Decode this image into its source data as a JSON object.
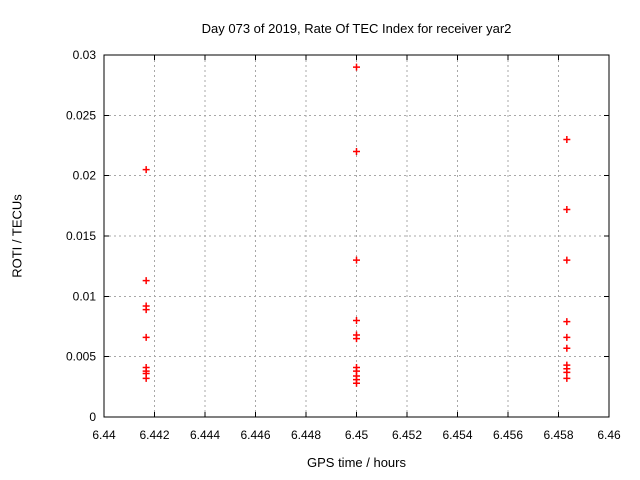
{
  "chart_data": {
    "type": "scatter",
    "title": "Day 073 of 2019, Rate Of TEC Index for receiver yar2",
    "xlabel": "GPS time / hours",
    "ylabel": "ROTI / TECUs",
    "xlim": [
      6.44,
      6.46
    ],
    "ylim": [
      0,
      0.03
    ],
    "x_ticks": [
      6.44,
      6.442,
      6.444,
      6.446,
      6.448,
      6.45,
      6.452,
      6.454,
      6.456,
      6.458,
      6.46
    ],
    "x_tick_labels": [
      "6.44",
      "6.442",
      "6.444",
      "6.446",
      "6.448",
      "6.45",
      "6.452",
      "6.454",
      "6.456",
      "6.458",
      "6.46"
    ],
    "y_ticks": [
      0,
      0.005,
      0.01,
      0.015,
      0.02,
      0.025,
      0.03
    ],
    "y_tick_labels": [
      "0",
      "0.005",
      "0.01",
      "0.015",
      "0.02",
      "0.025",
      "0.03"
    ],
    "grid": true,
    "legend": "none",
    "marker": "plus",
    "colors": {
      "marker": "#ff0000",
      "grid": "#a8a8a8",
      "frame": "#000000",
      "background": "#ffffff",
      "text": "#000000"
    },
    "series": [
      {
        "name": "ROTI",
        "points": [
          [
            6.44167,
            0.0205
          ],
          [
            6.44167,
            0.0113
          ],
          [
            6.44167,
            0.0092
          ],
          [
            6.44167,
            0.0089
          ],
          [
            6.44167,
            0.0066
          ],
          [
            6.44167,
            0.0041
          ],
          [
            6.44167,
            0.0038
          ],
          [
            6.44167,
            0.0036
          ],
          [
            6.44167,
            0.0032
          ],
          [
            6.45,
            0.029
          ],
          [
            6.45,
            0.022
          ],
          [
            6.45,
            0.013
          ],
          [
            6.45,
            0.008
          ],
          [
            6.45,
            0.0068
          ],
          [
            6.45,
            0.0065
          ],
          [
            6.45,
            0.0041
          ],
          [
            6.45,
            0.0038
          ],
          [
            6.45,
            0.0034
          ],
          [
            6.45,
            0.0031
          ],
          [
            6.45,
            0.0028
          ],
          [
            6.45833,
            0.023
          ],
          [
            6.45833,
            0.0172
          ],
          [
            6.45833,
            0.013
          ],
          [
            6.45833,
            0.0079
          ],
          [
            6.45833,
            0.0066
          ],
          [
            6.45833,
            0.0057
          ],
          [
            6.45833,
            0.0043
          ],
          [
            6.45833,
            0.004
          ],
          [
            6.45833,
            0.0037
          ],
          [
            6.45833,
            0.0032
          ]
        ]
      }
    ]
  }
}
